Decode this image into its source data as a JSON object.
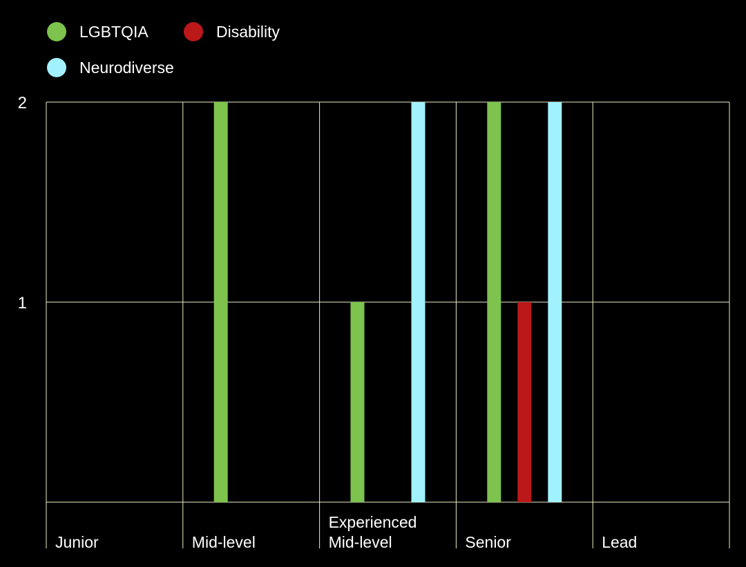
{
  "chart_data": {
    "type": "bar",
    "categories": [
      [
        "Junior"
      ],
      [
        "Mid-level"
      ],
      [
        "Experienced",
        "Mid-level"
      ],
      [
        "Senior"
      ],
      [
        "Lead"
      ]
    ],
    "series": [
      {
        "name": "LGBTQIA",
        "color": "#7DC34E",
        "values": [
          0,
          2,
          1,
          2,
          0
        ]
      },
      {
        "name": "Disability",
        "color": "#BB1819",
        "values": [
          0,
          0,
          0,
          1,
          0
        ]
      },
      {
        "name": "Neurodiverse",
        "color": "#A2F1FE",
        "values": [
          0,
          0,
          2,
          2,
          0
        ]
      }
    ],
    "yticks": [
      1,
      2
    ],
    "ylim": [
      0,
      2
    ],
    "grid": true,
    "legend_position": "top-left",
    "background": "#000000",
    "grid_color": "#EEEEC4",
    "text_color": "#FFFFFF"
  }
}
